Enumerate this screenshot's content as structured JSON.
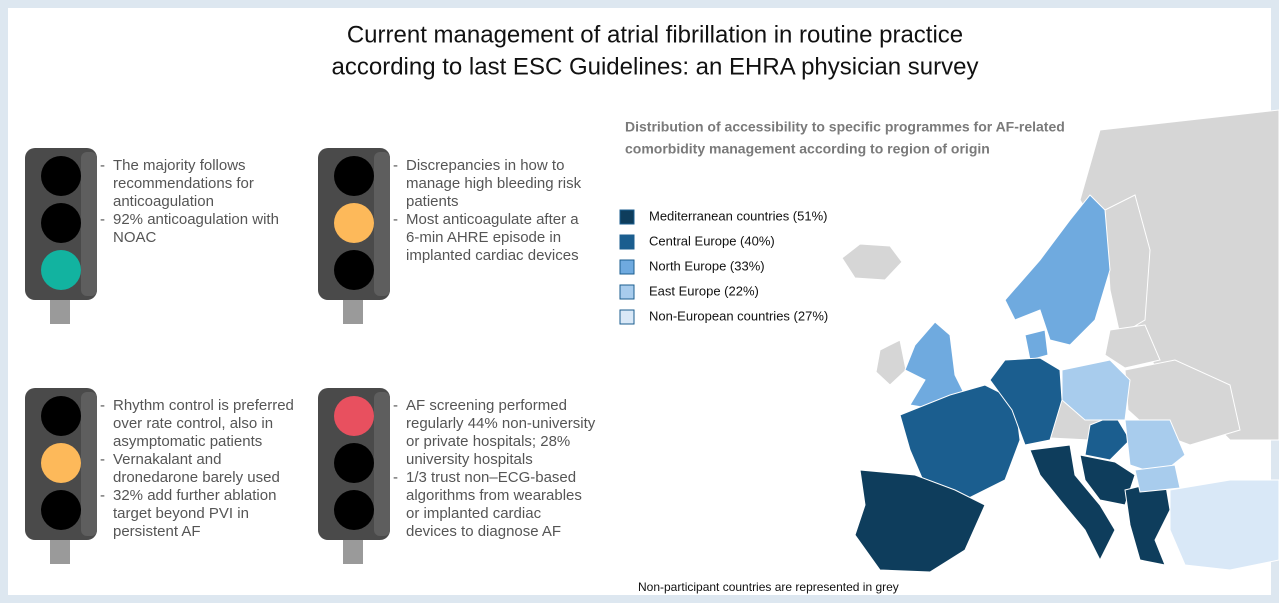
{
  "title": [
    "Current management of atrial fibrillation in routine practice",
    "according to last ESC Guidelines: an EHRA physician survey"
  ],
  "panels": [
    {
      "items": [
        [
          "The majority follows",
          "recommendations for",
          "anticoagulation"
        ],
        [
          "92% anticoagulation with",
          "NOAC"
        ]
      ]
    },
    {
      "items": [
        [
          "Discrepancies in how to",
          "manage high bleeding risk",
          "patients"
        ],
        [
          "Most anticoagulate after a",
          "6-min AHRE episode in",
          "implanted cardiac devices"
        ]
      ]
    },
    {
      "items": [
        [
          "Rhythm control is preferred",
          "over rate control, also in",
          "asymptomatic patients"
        ],
        [
          "Vernakalant and",
          "dronedarone barely used"
        ],
        [
          "32% add further ablation",
          "target beyond PVI in",
          "persistent AF"
        ]
      ]
    },
    {
      "items": [
        [
          "AF screening performed",
          "regularly 44% non-university",
          "or private hospitals; 28%",
          "university hospitals"
        ],
        [
          "1/3 trust non–ECG-based",
          "algorithms from wearables",
          "or implanted cardiac",
          "devices to diagnose AF"
        ]
      ]
    }
  ],
  "map": {
    "title": [
      "Distribution of accessibility to specific programmes for AF-related",
      "comorbidity management according to region of origin"
    ],
    "legend": [
      {
        "label": "Mediterranean countries (51%)",
        "color": "#0e3d5c"
      },
      {
        "label": "Central Europe (40%)",
        "color": "#1b5e8f"
      },
      {
        "label": "North Europe (33%)",
        "color": "#6faadf"
      },
      {
        "label": "East Europe (22%)",
        "color": "#a8cced"
      },
      {
        "label": "Non-European countries (27%)",
        "color": "#d9e8f7"
      }
    ],
    "note": "Non-participant countries are represented in grey"
  }
}
